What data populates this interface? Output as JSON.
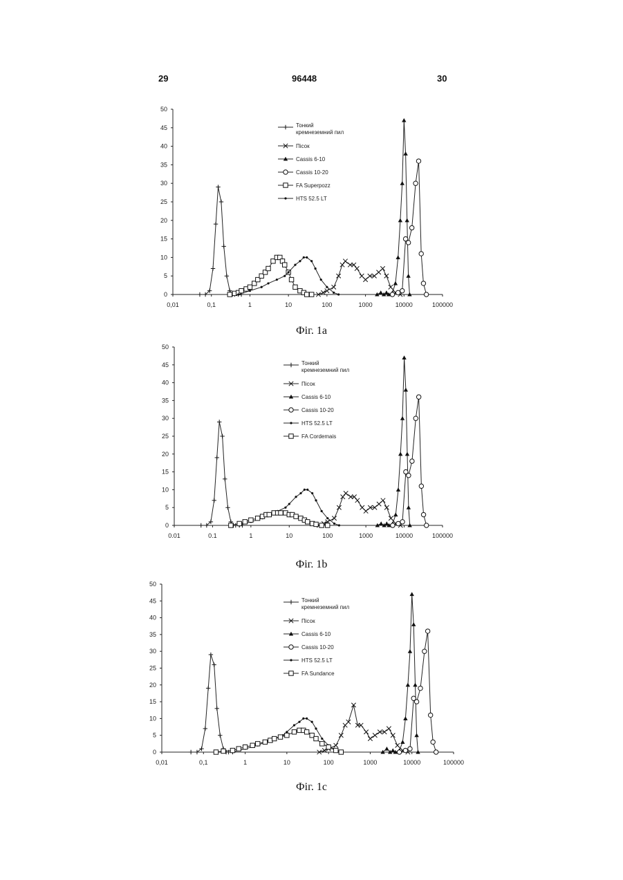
{
  "header": {
    "left_page": "29",
    "patent_number": "96448",
    "right_page": "30"
  },
  "chart_data": [
    {
      "type": "line",
      "caption": "Фіг. 1a",
      "x_scale": "log",
      "xlim": [
        0.01,
        100000
      ],
      "ylim": [
        0,
        50
      ],
      "x_ticks": [
        "0,01",
        "0,1",
        "1",
        "10",
        "100",
        "1000",
        "10000",
        "100000"
      ],
      "y_ticks": [
        "0",
        "5",
        "10",
        "15",
        "20",
        "25",
        "30",
        "35",
        "40",
        "45",
        "50"
      ],
      "grid": false,
      "legend_position": "top-center",
      "series": [
        {
          "name": "Тонкий кремнеземний пил",
          "marker": "plus",
          "x": [
            0.05,
            0.07,
            0.09,
            0.11,
            0.13,
            0.15,
            0.18,
            0.21,
            0.25,
            0.3,
            0.35,
            0.4,
            0.5,
            0.6
          ],
          "y": [
            0,
            0,
            1,
            7,
            19,
            29,
            25,
            13,
            5,
            1,
            0,
            0,
            0,
            0
          ]
        },
        {
          "name": "Пісок",
          "marker": "x",
          "x": [
            60,
            80,
            100,
            150,
            200,
            250,
            300,
            400,
            500,
            600,
            800,
            1000,
            1300,
            1700,
            2200,
            2800,
            3500,
            4500,
            6000,
            8000
          ],
          "y": [
            0,
            0.5,
            1,
            2,
            5,
            8,
            9,
            8,
            8,
            7,
            5,
            4,
            5,
            5,
            6,
            7,
            5,
            2,
            0.5,
            0
          ]
        },
        {
          "name": "Cassis 6-10",
          "marker": "triangle",
          "x": [
            2000,
            2500,
            3000,
            3500,
            4000,
            5000,
            6000,
            7000,
            8000,
            9000,
            10000,
            11000,
            12000,
            13000,
            14000
          ],
          "y": [
            0,
            0.5,
            0,
            0.5,
            0,
            0.5,
            3,
            10,
            20,
            30,
            47,
            38,
            20,
            5,
            0
          ]
        },
        {
          "name": "Cassis 10-20",
          "marker": "circle",
          "x": [
            5000,
            7000,
            9000,
            11000,
            13000,
            16000,
            20000,
            24000,
            28000,
            32000,
            38000
          ],
          "y": [
            0,
            0.5,
            1,
            15,
            14,
            18,
            30,
            36,
            11,
            3,
            0
          ]
        },
        {
          "name": "FA Superpozz",
          "marker": "square",
          "x": [
            0.3,
            0.4,
            0.5,
            0.6,
            0.8,
            1,
            1.3,
            1.6,
            2,
            2.5,
            3,
            4,
            5,
            6,
            7,
            8,
            10,
            12,
            15,
            20,
            25,
            30,
            40
          ],
          "y": [
            0,
            0.3,
            0.5,
            1,
            1.5,
            2,
            3,
            4,
            5,
            6,
            7,
            9,
            10,
            10,
            9,
            8,
            6,
            4,
            2,
            1,
            0.5,
            0,
            0
          ]
        },
        {
          "name": "HTS 52.5 LT",
          "marker": "dot",
          "x": [
            0.5,
            1,
            2,
            3,
            5,
            8,
            10,
            15,
            20,
            25,
            30,
            40,
            50,
            70,
            100,
            150,
            200
          ],
          "y": [
            0,
            1,
            2,
            3,
            4,
            5,
            6,
            8,
            9,
            10,
            10,
            9,
            7,
            4,
            2,
            0.5,
            0
          ]
        }
      ]
    },
    {
      "type": "line",
      "caption": "Фіг. 1b",
      "x_scale": "log",
      "xlim": [
        0.01,
        100000
      ],
      "ylim": [
        0,
        50
      ],
      "x_ticks": [
        "0.01",
        "0.1",
        "1",
        "10",
        "100",
        "1000",
        "10000",
        "100000"
      ],
      "y_ticks": [
        "0",
        "5",
        "10",
        "15",
        "20",
        "25",
        "30",
        "35",
        "40",
        "45",
        "50"
      ],
      "grid": false,
      "legend_position": "top-center",
      "series": [
        {
          "name": "Тонкий кремнеземний пил",
          "marker": "plus",
          "x": [
            0.05,
            0.07,
            0.09,
            0.11,
            0.13,
            0.15,
            0.18,
            0.21,
            0.25,
            0.3,
            0.35,
            0.4,
            0.5,
            0.6
          ],
          "y": [
            0,
            0,
            1,
            7,
            19,
            29,
            25,
            13,
            5,
            1,
            0,
            0,
            0,
            0
          ]
        },
        {
          "name": "Пісок",
          "marker": "x",
          "x": [
            60,
            80,
            100,
            150,
            200,
            250,
            300,
            400,
            500,
            600,
            800,
            1000,
            1300,
            1700,
            2200,
            2800,
            3500,
            4500,
            6000,
            8000
          ],
          "y": [
            0,
            0.5,
            1,
            2,
            5,
            8,
            9,
            8,
            8,
            7,
            5,
            4,
            5,
            5,
            6,
            7,
            5,
            2,
            0.5,
            0
          ]
        },
        {
          "name": "Cassis 6-10",
          "marker": "triangle",
          "x": [
            2000,
            2500,
            3000,
            3500,
            4000,
            5000,
            6000,
            7000,
            8000,
            9000,
            10000,
            11000,
            12000,
            13000,
            14000
          ],
          "y": [
            0,
            0.5,
            0,
            0.5,
            0,
            0.5,
            3,
            10,
            20,
            30,
            47,
            38,
            20,
            5,
            0
          ]
        },
        {
          "name": "Cassis 10-20",
          "marker": "circle",
          "x": [
            5000,
            7000,
            9000,
            11000,
            13000,
            16000,
            20000,
            24000,
            28000,
            32000,
            38000
          ],
          "y": [
            0,
            0.5,
            1,
            15,
            14,
            18,
            30,
            36,
            11,
            3,
            0
          ]
        },
        {
          "name": "HTS 52.5 LT",
          "marker": "dot",
          "x": [
            0.5,
            1,
            2,
            3,
            5,
            8,
            10,
            15,
            20,
            25,
            30,
            40,
            50,
            70,
            100,
            150,
            200
          ],
          "y": [
            0,
            1,
            2,
            3,
            4,
            5,
            6,
            8,
            9,
            10,
            10,
            9,
            7,
            4,
            2,
            0.5,
            0
          ]
        },
        {
          "name": "FA Cordemais",
          "marker": "square",
          "x": [
            0.3,
            0.5,
            0.7,
            1,
            1.5,
            2,
            2.5,
            3,
            4,
            5,
            6,
            8,
            10,
            12,
            15,
            20,
            25,
            30,
            40,
            50,
            70,
            100
          ],
          "y": [
            0,
            0.5,
            1,
            1.5,
            2,
            2.5,
            3,
            3,
            3.5,
            3.5,
            3.5,
            3.5,
            3,
            3,
            2.5,
            2,
            1.5,
            1,
            0.5,
            0.3,
            0,
            0
          ]
        }
      ]
    },
    {
      "type": "line",
      "caption": "Фіг. 1c",
      "x_scale": "log",
      "xlim": [
        0.01,
        100000
      ],
      "ylim": [
        0,
        50
      ],
      "x_ticks": [
        "0,01",
        "0,1",
        "1",
        "10",
        "100",
        "1000",
        "10000",
        "100000"
      ],
      "y_ticks": [
        "0",
        "5",
        "10",
        "15",
        "20",
        "25",
        "30",
        "35",
        "40",
        "45",
        "50"
      ],
      "grid": false,
      "legend_position": "top-center",
      "series": [
        {
          "name": "Тонкий кремнеземний пил",
          "marker": "plus",
          "x": [
            0.05,
            0.07,
            0.09,
            0.11,
            0.13,
            0.15,
            0.18,
            0.21,
            0.25,
            0.3,
            0.35,
            0.4,
            0.5
          ],
          "y": [
            0,
            0,
            1,
            7,
            19,
            29,
            26,
            13,
            5,
            1,
            0,
            0,
            0
          ]
        },
        {
          "name": "Пісок",
          "marker": "x",
          "x": [
            60,
            80,
            100,
            150,
            200,
            250,
            300,
            400,
            500,
            600,
            800,
            1000,
            1300,
            1700,
            2200,
            2800,
            3500,
            4500,
            6000,
            8000
          ],
          "y": [
            0,
            0.5,
            1,
            2,
            5,
            8,
            9,
            14,
            8,
            8,
            6,
            4,
            5,
            6,
            6,
            7,
            5,
            2,
            0.5,
            0
          ]
        },
        {
          "name": "Cassis 6-10",
          "marker": "triangle",
          "x": [
            2000,
            2500,
            3000,
            3500,
            4000,
            5000,
            6000,
            7000,
            8000,
            9000,
            10000,
            11000,
            12000,
            13000,
            14000
          ],
          "y": [
            0,
            1,
            0,
            0.5,
            0,
            0.5,
            3,
            10,
            20,
            30,
            47,
            38,
            20,
            5,
            0
          ]
        },
        {
          "name": "Cassis 10-20",
          "marker": "circle",
          "x": [
            5000,
            7000,
            9000,
            11000,
            13000,
            16000,
            20000,
            24000,
            28000,
            32000,
            38000
          ],
          "y": [
            0,
            0.5,
            1,
            16,
            15,
            19,
            30,
            36,
            11,
            3,
            0
          ]
        },
        {
          "name": "HTS 52.5 LT",
          "marker": "dot",
          "x": [
            0.5,
            1,
            2,
            3,
            5,
            8,
            10,
            15,
            20,
            25,
            30,
            40,
            50,
            70,
            100,
            150,
            200
          ],
          "y": [
            0,
            1,
            2,
            3,
            4,
            5,
            6,
            8,
            9,
            10,
            10,
            9,
            7,
            4,
            2,
            0.5,
            0
          ]
        },
        {
          "name": "FA Sundance",
          "marker": "square",
          "x": [
            0.2,
            0.3,
            0.5,
            0.7,
            1,
            1.5,
            2,
            3,
            4,
            5,
            7,
            10,
            15,
            20,
            25,
            30,
            40,
            50,
            70,
            100,
            150,
            200
          ],
          "y": [
            0,
            0.3,
            0.5,
            1,
            1.5,
            2,
            2.5,
            3,
            3.5,
            4,
            4.5,
            5,
            6,
            6.5,
            6.5,
            6,
            5,
            4,
            2.5,
            1.5,
            0.5,
            0
          ]
        }
      ]
    }
  ]
}
